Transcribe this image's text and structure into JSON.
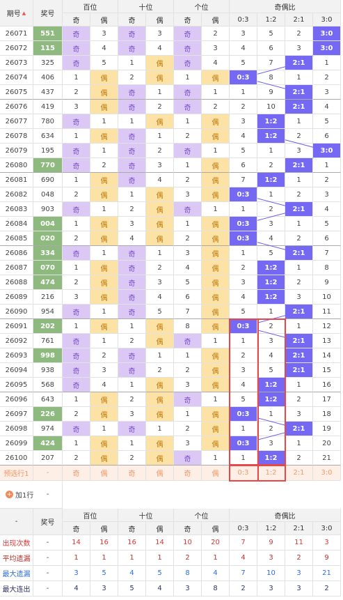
{
  "header": {
    "issue": "期号",
    "prize": "奖号",
    "groups": [
      "百位",
      "十位",
      "个位",
      "奇偶比"
    ],
    "sub": [
      "奇",
      "偶",
      "奇",
      "偶",
      "奇",
      "偶",
      "0:3",
      "1:2",
      "2:1",
      "3:0"
    ]
  },
  "rows": [
    {
      "issue": "26071",
      "prize": "551",
      "highlight": true,
      "cells": [
        "奇",
        3,
        "奇",
        3,
        "奇",
        2,
        3,
        5,
        2,
        "3:0"
      ]
    },
    {
      "issue": "26072",
      "prize": "115",
      "highlight": true,
      "cells": [
        "奇",
        4,
        "奇",
        4,
        "奇",
        3,
        4,
        6,
        3,
        "3:0"
      ]
    },
    {
      "issue": "26073",
      "prize": "325",
      "cells": [
        "奇",
        5,
        1,
        "偶",
        "奇",
        4,
        5,
        7,
        "2:1",
        1
      ]
    },
    {
      "issue": "26074",
      "prize": "406",
      "cells": [
        1,
        "偶",
        2,
        "偶",
        1,
        "偶",
        "0:3",
        8,
        1,
        2
      ]
    },
    {
      "issue": "26075",
      "prize": "437",
      "cells": [
        2,
        "偶",
        "奇",
        1,
        "奇",
        1,
        1,
        9,
        "2:1",
        3
      ]
    },
    {
      "issue": "26076",
      "prize": "419",
      "cells": [
        3,
        "偶",
        "奇",
        2,
        "奇",
        2,
        2,
        10,
        "2:1",
        4
      ]
    },
    {
      "issue": "26077",
      "prize": "780",
      "cells": [
        "奇",
        1,
        1,
        "偶",
        1,
        "偶",
        3,
        "1:2",
        1,
        5
      ]
    },
    {
      "issue": "26078",
      "prize": "634",
      "cells": [
        1,
        "偶",
        "奇",
        1,
        2,
        "偶",
        4,
        "1:2",
        2,
        6
      ]
    },
    {
      "issue": "26079",
      "prize": "195",
      "cells": [
        "奇",
        1,
        "奇",
        2,
        "奇",
        1,
        5,
        1,
        3,
        "3:0"
      ]
    },
    {
      "issue": "26080",
      "prize": "770",
      "highlight": true,
      "cells": [
        "奇",
        2,
        "奇",
        3,
        1,
        "偶",
        6,
        2,
        "2:1",
        1
      ]
    },
    {
      "issue": "26081",
      "prize": "690",
      "cells": [
        1,
        "偶",
        "奇",
        4,
        2,
        "偶",
        7,
        "1:2",
        1,
        2
      ]
    },
    {
      "issue": "26082",
      "prize": "048",
      "cells": [
        2,
        "偶",
        1,
        "偶",
        3,
        "偶",
        "0:3",
        1,
        2,
        3
      ]
    },
    {
      "issue": "26083",
      "prize": "903",
      "cells": [
        "奇",
        1,
        2,
        "偶",
        "奇",
        1,
        1,
        2,
        "2:1",
        4
      ]
    },
    {
      "issue": "26084",
      "prize": "004",
      "highlight": true,
      "cells": [
        1,
        "偶",
        3,
        "偶",
        1,
        "偶",
        "0:3",
        3,
        1,
        5
      ]
    },
    {
      "issue": "26085",
      "prize": "020",
      "highlight": true,
      "cells": [
        2,
        "偶",
        4,
        "偶",
        2,
        "偶",
        "0:3",
        4,
        2,
        6
      ]
    },
    {
      "issue": "26086",
      "prize": "334",
      "highlight": true,
      "cells": [
        "奇",
        1,
        "奇",
        1,
        3,
        "偶",
        1,
        5,
        "2:1",
        7
      ]
    },
    {
      "issue": "26087",
      "prize": "070",
      "highlight": true,
      "cells": [
        1,
        "偶",
        "奇",
        2,
        4,
        "偶",
        2,
        "1:2",
        1,
        8
      ]
    },
    {
      "issue": "26088",
      "prize": "474",
      "highlight": true,
      "cells": [
        2,
        "偶",
        "奇",
        3,
        5,
        "偶",
        3,
        "1:2",
        2,
        9
      ]
    },
    {
      "issue": "26089",
      "prize": "216",
      "cells": [
        3,
        "偶",
        "奇",
        4,
        6,
        "偶",
        4,
        "1:2",
        3,
        10
      ]
    },
    {
      "issue": "26090",
      "prize": "954",
      "cells": [
        "奇",
        1,
        "奇",
        5,
        7,
        "偶",
        5,
        1,
        "2:1",
        11
      ]
    },
    {
      "issue": "26091",
      "prize": "202",
      "highlight": true,
      "cells": [
        1,
        "偶",
        1,
        "偶",
        8,
        "偶",
        "0:3",
        2,
        1,
        12
      ]
    },
    {
      "issue": "26092",
      "prize": "761",
      "cells": [
        "奇",
        1,
        2,
        "偶",
        "奇",
        1,
        1,
        3,
        "2:1",
        13
      ]
    },
    {
      "issue": "26093",
      "prize": "998",
      "highlight": true,
      "cells": [
        "奇",
        2,
        "奇",
        1,
        1,
        "偶",
        2,
        4,
        "2:1",
        14
      ]
    },
    {
      "issue": "26094",
      "prize": "938",
      "cells": [
        "奇",
        3,
        "奇",
        2,
        2,
        "偶",
        3,
        5,
        "2:1",
        15
      ]
    },
    {
      "issue": "26095",
      "prize": "568",
      "cells": [
        "奇",
        4,
        1,
        "偶",
        3,
        "偶",
        4,
        "1:2",
        1,
        16
      ]
    },
    {
      "issue": "26096",
      "prize": "643",
      "cells": [
        1,
        "偶",
        2,
        "偶",
        "奇",
        1,
        5,
        "1:2",
        2,
        17
      ]
    },
    {
      "issue": "26097",
      "prize": "226",
      "highlight": true,
      "cells": [
        2,
        "偶",
        3,
        "偶",
        1,
        "偶",
        "0:3",
        1,
        3,
        18
      ]
    },
    {
      "issue": "26098",
      "prize": "974",
      "cells": [
        "奇",
        1,
        "奇",
        1,
        2,
        "偶",
        1,
        2,
        "2:1",
        19
      ]
    },
    {
      "issue": "26099",
      "prize": "424",
      "highlight": true,
      "cells": [
        1,
        "偶",
        1,
        "偶",
        3,
        "偶",
        "0:3",
        3,
        1,
        20
      ]
    },
    {
      "issue": "26100",
      "prize": "207",
      "cells": [
        2,
        "偶",
        2,
        "偶",
        "奇",
        1,
        1,
        "1:2",
        2,
        21
      ]
    }
  ],
  "preselect": {
    "label": "预选行1",
    "prize": "-",
    "cells": [
      "奇",
      "偶",
      "奇",
      "偶",
      "奇",
      "偶",
      "0:3",
      "1:2",
      "2:1",
      "3:0"
    ]
  },
  "add_row": {
    "label": "加1行",
    "prize": "-"
  },
  "footer": {
    "corner": "-",
    "prize": "奖号",
    "groups": [
      "百位",
      "十位",
      "个位",
      "奇偶比"
    ],
    "sub": [
      "奇",
      "偶",
      "奇",
      "偶",
      "奇",
      "偶",
      "0:3",
      "1:2",
      "2:1",
      "3:0"
    ],
    "stats": [
      {
        "label": "出现次数",
        "color": "#d83a3a",
        "prize": "-",
        "values": [
          14,
          16,
          16,
          14,
          10,
          20,
          7,
          9,
          11,
          3
        ]
      },
      {
        "label": "平均遗漏",
        "color": "#b8322a",
        "prize": "-",
        "values": [
          1,
          1,
          1,
          1,
          2,
          1,
          4,
          3,
          2,
          9
        ]
      },
      {
        "label": "最大遗漏",
        "color": "#2f6fd8",
        "prize": "-",
        "values": [
          3,
          5,
          4,
          5,
          8,
          4,
          7,
          10,
          3,
          21
        ]
      },
      {
        "label": "最大连出",
        "color": "#2d3566",
        "prize": "-",
        "values": [
          4,
          3,
          5,
          4,
          3,
          8,
          2,
          3,
          3,
          2
        ]
      }
    ]
  }
}
